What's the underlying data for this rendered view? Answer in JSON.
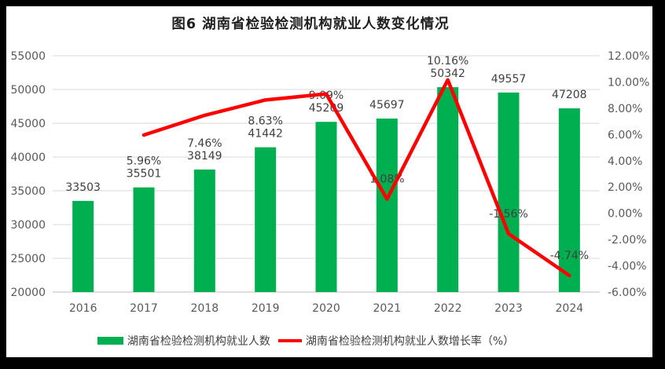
{
  "title": "图6 湖南省检验检测机构就业人数变化情况",
  "legend": [
    {
      "label": "湖南省检验检测机构就业人数",
      "swatch": "bar",
      "color": "#00B050"
    },
    {
      "label": "湖南省检验检测机构就业人数增长率（%）",
      "swatch": "line",
      "color": "#FF0000"
    }
  ],
  "colors": {
    "bar": "#00B050",
    "line": "#FF0000",
    "grid": "#D9D9D9",
    "axis_line": "#BFBFBF",
    "tick_label": "#595959",
    "data_label": "#404040",
    "frame": "#000000",
    "panel": "#FFFFFF"
  },
  "chart_data": {
    "type": "combo",
    "title": "图6 湖南省检验检测机构就业人数变化情况",
    "categories": [
      "2016",
      "2017",
      "2018",
      "2019",
      "2020",
      "2021",
      "2022",
      "2023",
      "2024"
    ],
    "series": [
      {
        "name": "湖南省检验检测机构就业人数",
        "type": "bar",
        "axis": "left",
        "color": "#00B050",
        "values": [
          33503,
          35501,
          38149,
          41442,
          45209,
          45697,
          50342,
          49557,
          47208
        ],
        "labels": [
          "33503",
          "35501",
          "38149",
          "41442",
          "45209",
          "45697",
          "50342",
          "49557",
          "47208"
        ]
      },
      {
        "name": "湖南省检验检测机构就业人数增长率（%）",
        "type": "line",
        "axis": "right",
        "color": "#FF0000",
        "values": [
          null,
          5.96,
          7.46,
          8.63,
          9.09,
          1.08,
          10.16,
          -1.56,
          -4.74
        ],
        "labels": [
          null,
          "5.96%",
          "7.46%",
          "8.63%",
          "9.09%",
          "1.08%",
          "10.16%",
          "-1.56%",
          "-4.74%"
        ]
      }
    ],
    "left_axis": {
      "min": 20000,
      "max": 55000,
      "step": 5000,
      "tick_labels": [
        "20000",
        "25000",
        "30000",
        "35000",
        "40000",
        "45000",
        "50000",
        "55000"
      ]
    },
    "right_axis": {
      "min": -6,
      "max": 12,
      "step": 2,
      "tick_labels": [
        "-6.00%",
        "-4.00%",
        "-2.00%",
        "0.00%",
        "2.00%",
        "4.00%",
        "6.00%",
        "8.00%",
        "10.00%",
        "12.00%"
      ]
    },
    "grid": true,
    "legend_position": "bottom"
  }
}
